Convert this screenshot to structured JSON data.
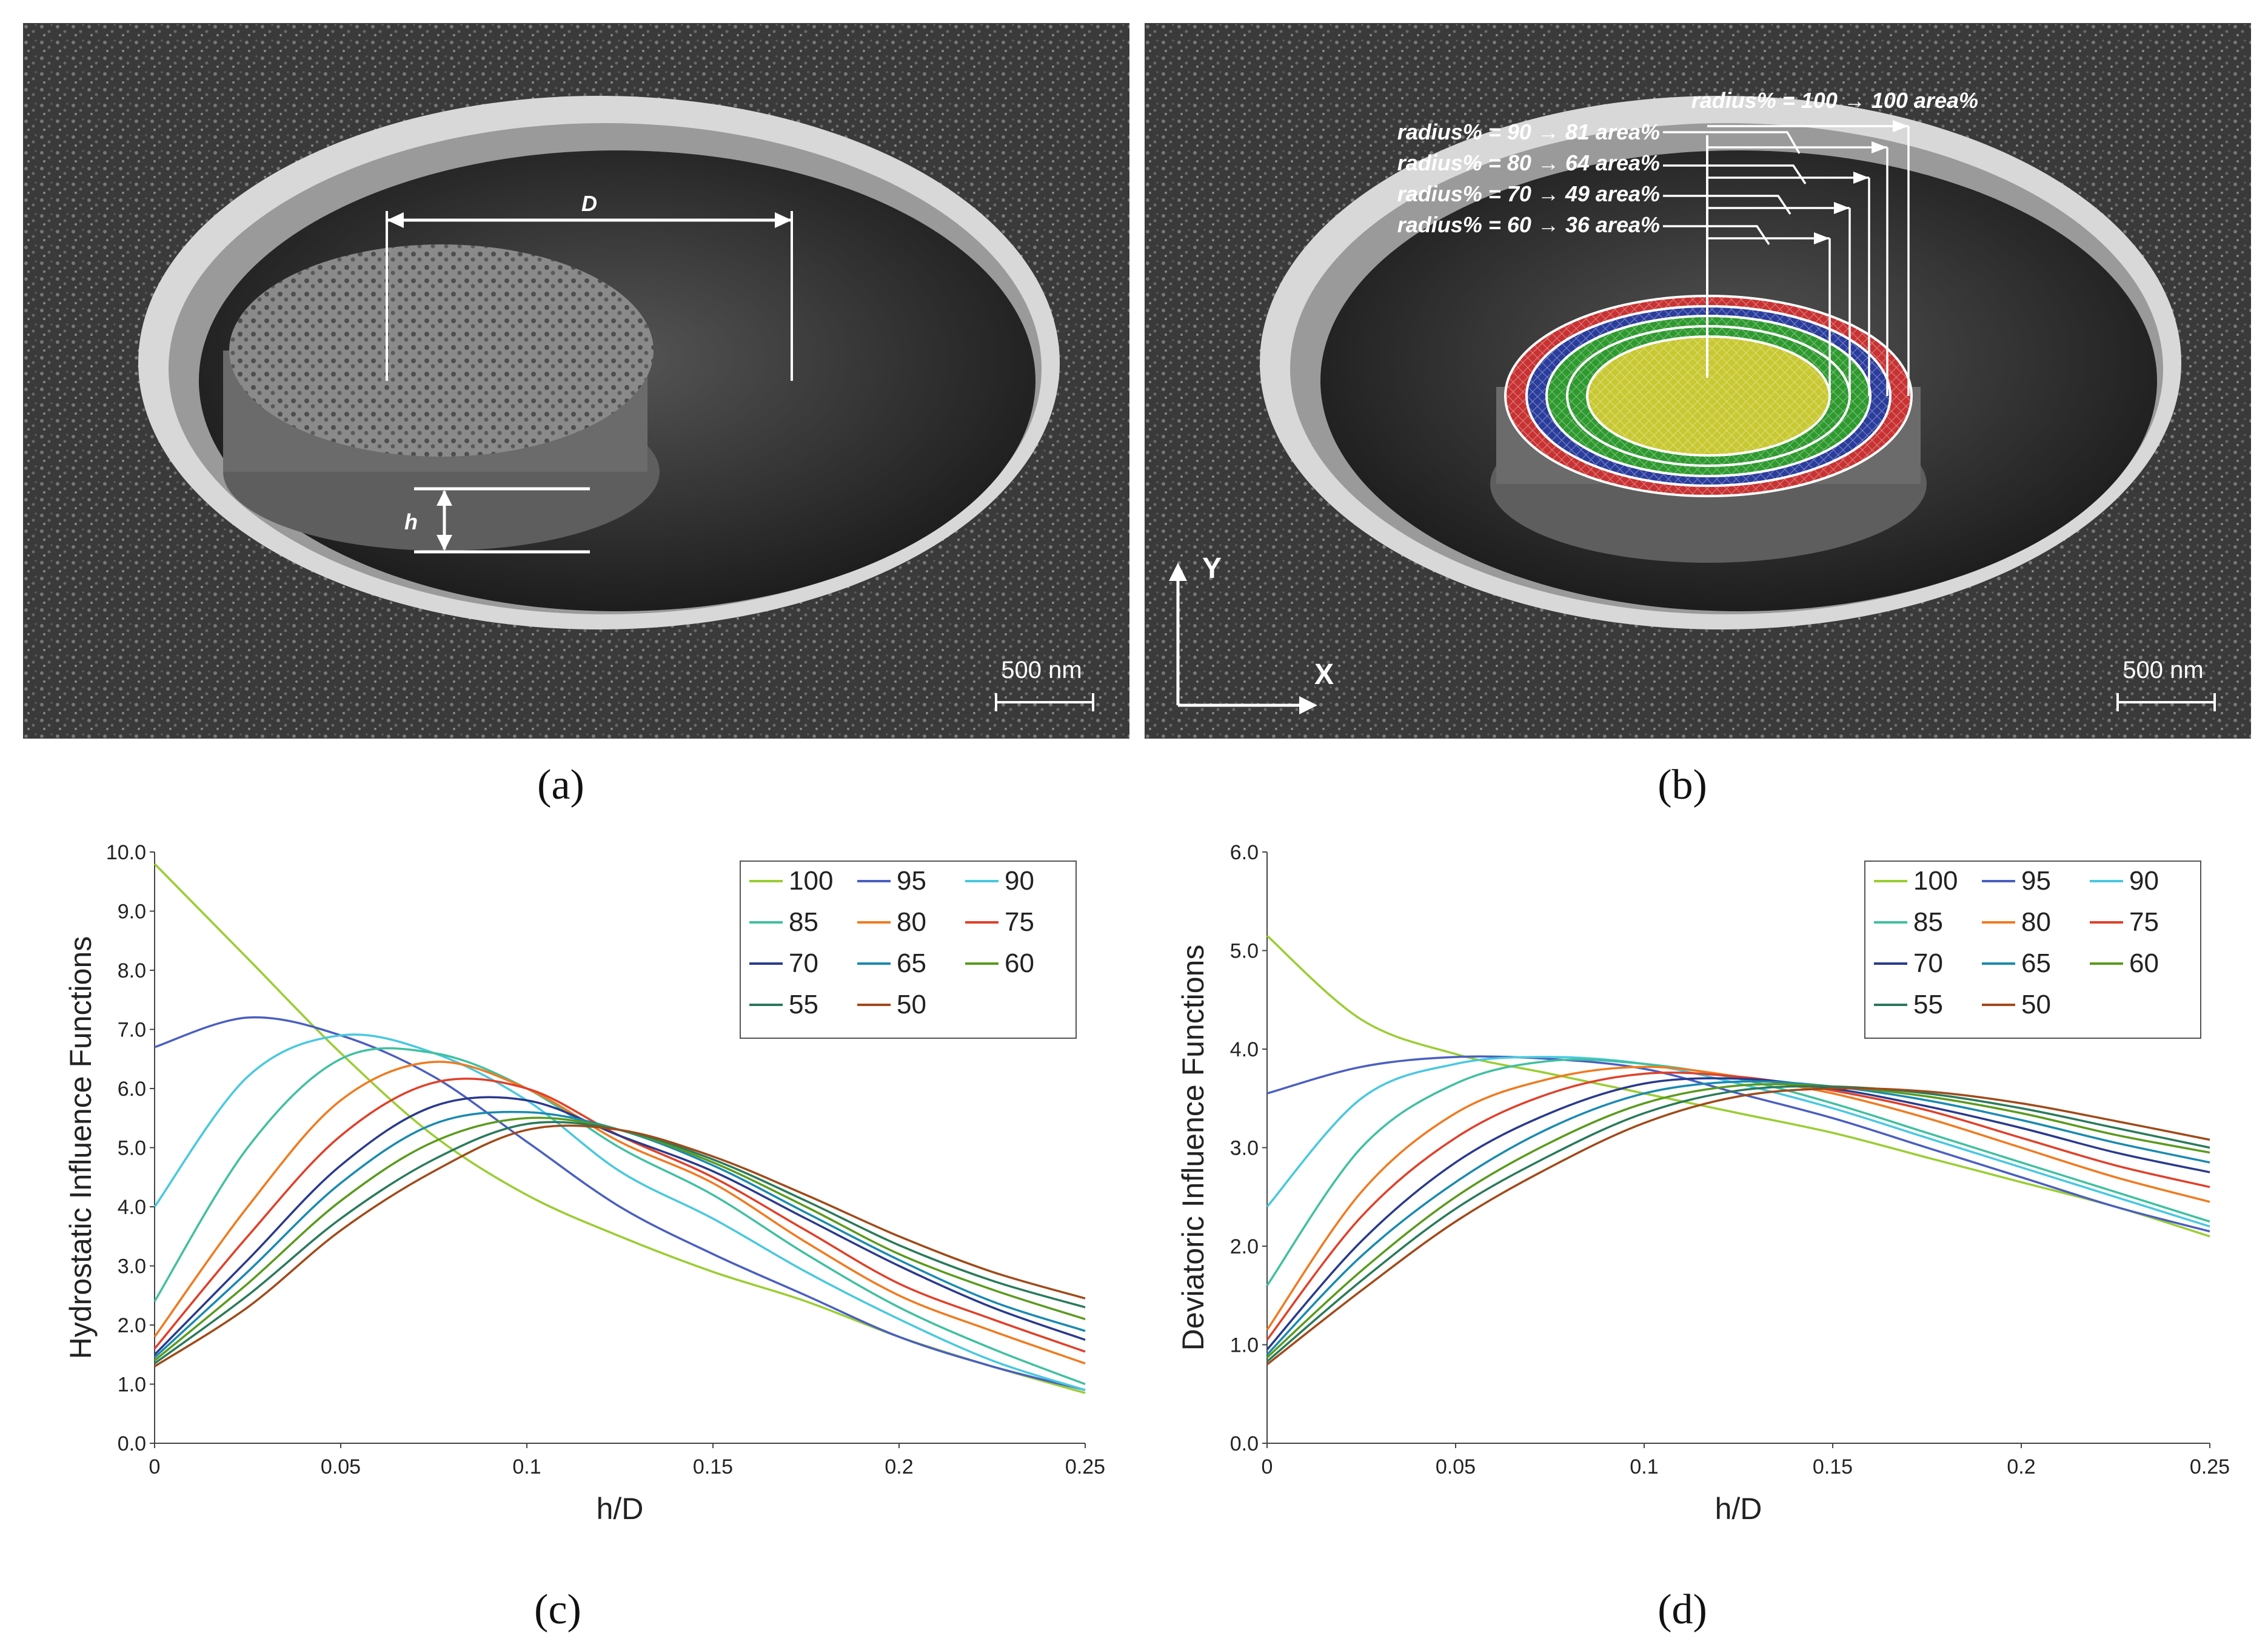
{
  "figure": {
    "captions": {
      "a": "(a)",
      "b": "(b)",
      "c": "(c)",
      "d": "(d)"
    }
  },
  "panel_a": {
    "label_D": "D",
    "label_h": "h",
    "scale_bar": "500 nm"
  },
  "panel_b": {
    "annotations": [
      "radius% = 100 → 100 area%",
      "radius% = 90 → 81 area%",
      "radius% = 80 → 64 area%",
      "radius% = 70 → 49 area%",
      "radius% = 60 → 36 area%"
    ],
    "axis_y": "Y",
    "axis_x": "X",
    "scale_bar": "500 nm",
    "ring_colors": [
      "#c83232",
      "#2a3c9c",
      "#2e9a2e",
      "#c8c832"
    ]
  },
  "chart_data": [
    {
      "id": "c",
      "type": "line",
      "title": "",
      "xlabel": "h/D",
      "ylabel": "Hydrostatic Influence Functions",
      "xlim": [
        0,
        0.25
      ],
      "ylim": [
        0,
        10
      ],
      "xticks": [
        0,
        0.05,
        0.1,
        0.15,
        0.2,
        0.25
      ],
      "xtick_labels": [
        "0",
        "0.05",
        "0.1",
        "0.15",
        "0.2",
        "0.25"
      ],
      "yticks": [
        0,
        1,
        2,
        3,
        4,
        5,
        6,
        7,
        8,
        9,
        10
      ],
      "ytick_labels": [
        "0.0",
        "1.0",
        "2.0",
        "3.0",
        "4.0",
        "5.0",
        "6.0",
        "7.0",
        "8.0",
        "9.0",
        "10.0"
      ],
      "legend": "top-right",
      "x": [
        0,
        0.025,
        0.05,
        0.075,
        0.1,
        0.125,
        0.15,
        0.175,
        0.2,
        0.225,
        0.25
      ],
      "series": [
        {
          "name": "100",
          "color": "#9acd32",
          "values": [
            9.8,
            8.2,
            6.6,
            5.2,
            4.2,
            3.5,
            2.9,
            2.4,
            1.8,
            1.3,
            0.85
          ]
        },
        {
          "name": "95",
          "color": "#4a5fc1",
          "values": [
            6.7,
            7.2,
            6.9,
            6.2,
            5.1,
            4.0,
            3.2,
            2.5,
            1.8,
            1.3,
            0.9
          ]
        },
        {
          "name": "90",
          "color": "#48c8e0",
          "values": [
            4.0,
            6.2,
            6.9,
            6.6,
            5.8,
            4.6,
            3.8,
            2.9,
            2.1,
            1.4,
            0.9
          ]
        },
        {
          "name": "85",
          "color": "#40c0a0",
          "values": [
            2.4,
            5.0,
            6.5,
            6.6,
            6.0,
            5.0,
            4.2,
            3.2,
            2.3,
            1.6,
            1.0
          ]
        },
        {
          "name": "80",
          "color": "#f07a20",
          "values": [
            1.8,
            4.0,
            5.8,
            6.45,
            6.0,
            5.1,
            4.4,
            3.4,
            2.5,
            1.9,
            1.35
          ]
        },
        {
          "name": "75",
          "color": "#e0402a",
          "values": [
            1.6,
            3.5,
            5.2,
            6.1,
            6.0,
            5.2,
            4.5,
            3.6,
            2.7,
            2.1,
            1.55
          ]
        },
        {
          "name": "70",
          "color": "#2a3a8c",
          "values": [
            1.5,
            3.1,
            4.7,
            5.7,
            5.8,
            5.2,
            4.6,
            3.8,
            3.0,
            2.3,
            1.75
          ]
        },
        {
          "name": "65",
          "color": "#1a8ab0",
          "values": [
            1.45,
            2.9,
            4.4,
            5.4,
            5.6,
            5.3,
            4.7,
            3.9,
            3.1,
            2.4,
            1.9
          ]
        },
        {
          "name": "60",
          "color": "#5a9a1e",
          "values": [
            1.4,
            2.7,
            4.1,
            5.1,
            5.5,
            5.3,
            4.75,
            4.0,
            3.2,
            2.6,
            2.1
          ]
        },
        {
          "name": "55",
          "color": "#2a7a5a",
          "values": [
            1.35,
            2.5,
            3.8,
            4.8,
            5.4,
            5.3,
            4.8,
            4.1,
            3.35,
            2.75,
            2.3
          ]
        },
        {
          "name": "50",
          "color": "#a04a1a",
          "values": [
            1.3,
            2.3,
            3.6,
            4.6,
            5.3,
            5.3,
            4.85,
            4.2,
            3.5,
            2.9,
            2.45
          ]
        }
      ]
    },
    {
      "id": "d",
      "type": "line",
      "title": "",
      "xlabel": "h/D",
      "ylabel": "Deviatoric Influence Functions",
      "xlim": [
        0,
        0.25
      ],
      "ylim": [
        0,
        6
      ],
      "xticks": [
        0,
        0.05,
        0.1,
        0.15,
        0.2,
        0.25
      ],
      "xtick_labels": [
        "0",
        "0.05",
        "0.1",
        "0.15",
        "0.2",
        "0.25"
      ],
      "yticks": [
        0,
        1,
        2,
        3,
        4,
        5,
        6
      ],
      "ytick_labels": [
        "0.0",
        "1.0",
        "2.0",
        "3.0",
        "4.0",
        "5.0",
        "6.0"
      ],
      "legend": "top-right",
      "x": [
        0,
        0.025,
        0.05,
        0.075,
        0.1,
        0.125,
        0.15,
        0.175,
        0.2,
        0.225,
        0.25
      ],
      "series": [
        {
          "name": "100",
          "color": "#9acd32",
          "values": [
            5.15,
            4.3,
            3.95,
            3.75,
            3.55,
            3.35,
            3.15,
            2.9,
            2.65,
            2.4,
            2.1
          ]
        },
        {
          "name": "95",
          "color": "#4a5fc1",
          "values": [
            3.55,
            3.82,
            3.92,
            3.9,
            3.8,
            3.55,
            3.3,
            3.0,
            2.7,
            2.4,
            2.15
          ]
        },
        {
          "name": "90",
          "color": "#48c8e0",
          "values": [
            2.4,
            3.5,
            3.85,
            3.92,
            3.85,
            3.65,
            3.4,
            3.1,
            2.8,
            2.5,
            2.2
          ]
        },
        {
          "name": "85",
          "color": "#40c0a0",
          "values": [
            1.6,
            3.0,
            3.65,
            3.88,
            3.85,
            3.7,
            3.45,
            3.15,
            2.85,
            2.55,
            2.25
          ]
        },
        {
          "name": "80",
          "color": "#f07a20",
          "values": [
            1.15,
            2.55,
            3.35,
            3.7,
            3.82,
            3.72,
            3.55,
            3.3,
            3.0,
            2.7,
            2.45
          ]
        },
        {
          "name": "75",
          "color": "#e0402a",
          "values": [
            1.05,
            2.3,
            3.1,
            3.55,
            3.75,
            3.72,
            3.58,
            3.38,
            3.1,
            2.82,
            2.6
          ]
        },
        {
          "name": "70",
          "color": "#2a3a8c",
          "values": [
            0.95,
            2.05,
            2.85,
            3.35,
            3.65,
            3.7,
            3.6,
            3.42,
            3.2,
            2.95,
            2.75
          ]
        },
        {
          "name": "65",
          "color": "#1a8ab0",
          "values": [
            0.9,
            1.9,
            2.65,
            3.2,
            3.55,
            3.67,
            3.62,
            3.48,
            3.28,
            3.05,
            2.85
          ]
        },
        {
          "name": "60",
          "color": "#5a9a1e",
          "values": [
            0.87,
            1.75,
            2.5,
            3.05,
            3.45,
            3.63,
            3.62,
            3.52,
            3.35,
            3.13,
            2.95
          ]
        },
        {
          "name": "55",
          "color": "#2a7a5a",
          "values": [
            0.83,
            1.65,
            2.38,
            2.92,
            3.35,
            3.58,
            3.62,
            3.55,
            3.4,
            3.2,
            3.0
          ]
        },
        {
          "name": "50",
          "color": "#a04a1a",
          "values": [
            0.8,
            1.55,
            2.25,
            2.8,
            3.25,
            3.52,
            3.6,
            3.57,
            3.45,
            3.27,
            3.08
          ]
        }
      ]
    }
  ]
}
